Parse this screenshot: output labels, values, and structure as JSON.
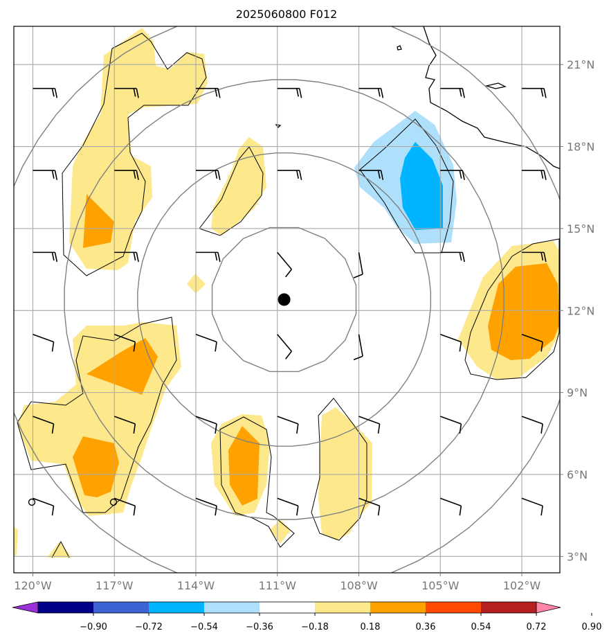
{
  "chart_data": {
    "type": "heatmap",
    "title": "2025060800 F012",
    "x_tick_labels": [
      "120°W",
      "117°W",
      "114°W",
      "111°W",
      "108°W",
      "105°W",
      "102°W"
    ],
    "x_tick_values": [
      -120,
      -117,
      -114,
      -111,
      -108,
      -105,
      -102
    ],
    "y_tick_labels": [
      "3°N",
      "6°N",
      "9°N",
      "12°N",
      "15°N",
      "18°N",
      "21°N"
    ],
    "y_tick_values": [
      3,
      6,
      9,
      12,
      15,
      18,
      21
    ],
    "xlim": [
      -120.7,
      -100.6
    ],
    "ylim": [
      2.4,
      22.4
    ],
    "gridlines": true,
    "storm_center": {
      "lon": -110.75,
      "lat": 12.4
    },
    "range_rings_deg": [
      2.7,
      5.4,
      8.1,
      10.8
    ],
    "colorbar": {
      "levels": [
        -0.9,
        -0.72,
        -0.54,
        -0.36,
        -0.18,
        0.18,
        0.36,
        0.54,
        0.72,
        0.9
      ],
      "labels": [
        "−0.90",
        "−0.72",
        "−0.54",
        "−0.36",
        "−0.18",
        "0.18",
        "0.36",
        "0.54",
        "0.72",
        "0.90"
      ],
      "colors": [
        "#9b30d8",
        "#000088",
        "#3b63d4",
        "#00b4ff",
        "#aee0fb",
        "#ffffff",
        "#fde98b",
        "#ffa200",
        "#ff4800",
        "#b42020",
        "#ff85a6"
      ],
      "extend": "both"
    },
    "wind_barb_grid": {
      "lons": [
        -120,
        -117,
        -114,
        -111,
        -108,
        -105,
        -102
      ],
      "lats": [
        5,
        8,
        11,
        14,
        17,
        20
      ]
    }
  }
}
